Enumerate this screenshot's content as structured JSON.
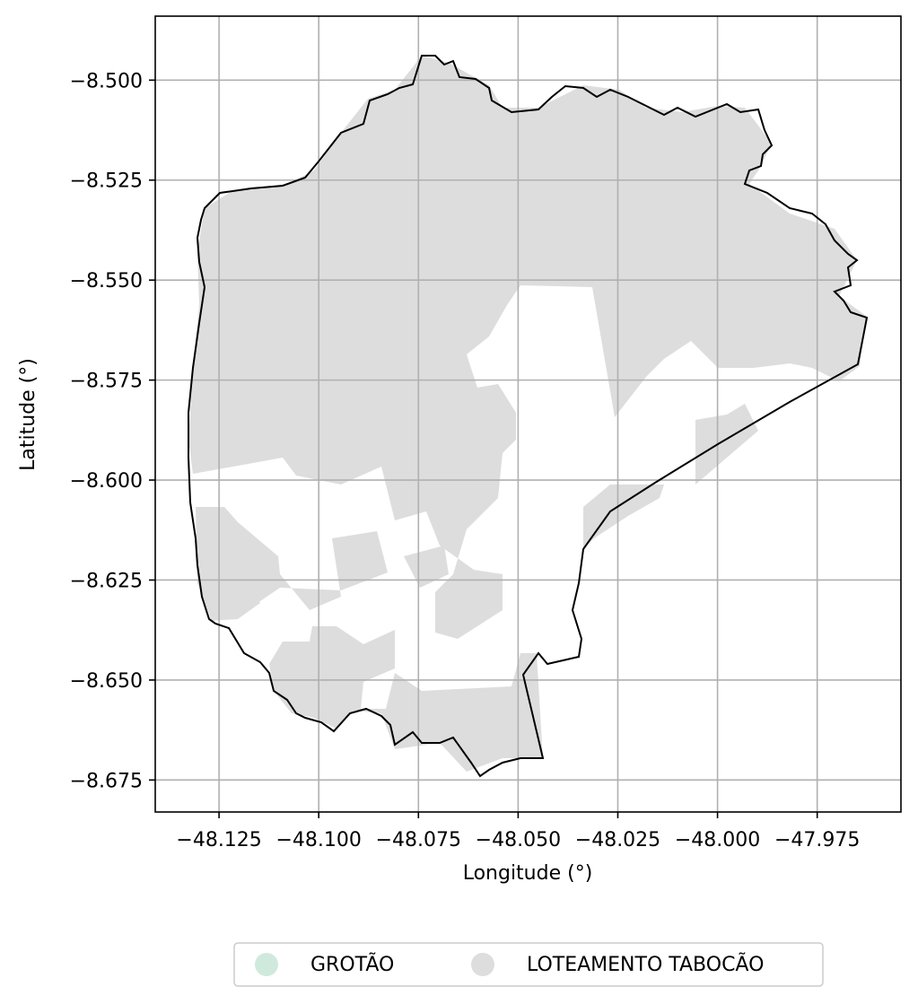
{
  "chart_data": {
    "type": "map",
    "xlabel": "Longitude (°)",
    "ylabel": "Latitude (°)",
    "xlim": [
      -48.141,
      -47.954
    ],
    "ylim": [
      -8.683,
      -8.484
    ],
    "grid": true,
    "x_ticks": [
      -48.125,
      -48.1,
      -48.075,
      -48.05,
      -48.025,
      -48.0,
      -47.975
    ],
    "x_tick_labels": [
      "−48.125",
      "−48.100",
      "−48.075",
      "−48.050",
      "−48.025",
      "−48.000",
      "−47.975"
    ],
    "y_ticks": [
      -8.5,
      -8.525,
      -8.55,
      -8.575,
      -8.6,
      -8.625,
      -8.65,
      -8.675
    ],
    "y_tick_labels": [
      "−8.500",
      "−8.525",
      "−8.550",
      "−8.575",
      "−8.600",
      "−8.625",
      "−8.650",
      "−8.675"
    ],
    "legend": {
      "placement": "bottom-center",
      "entries": [
        {
          "label": "GROTÃO",
          "color": "#cfeadc"
        },
        {
          "label": "LOTEAMENTO TABOCÃO",
          "color": "#dddddd"
        }
      ]
    },
    "colors": {
      "filled_area": "#dddddd",
      "boundary": "#000000",
      "grid": "#b0b0b0"
    }
  }
}
